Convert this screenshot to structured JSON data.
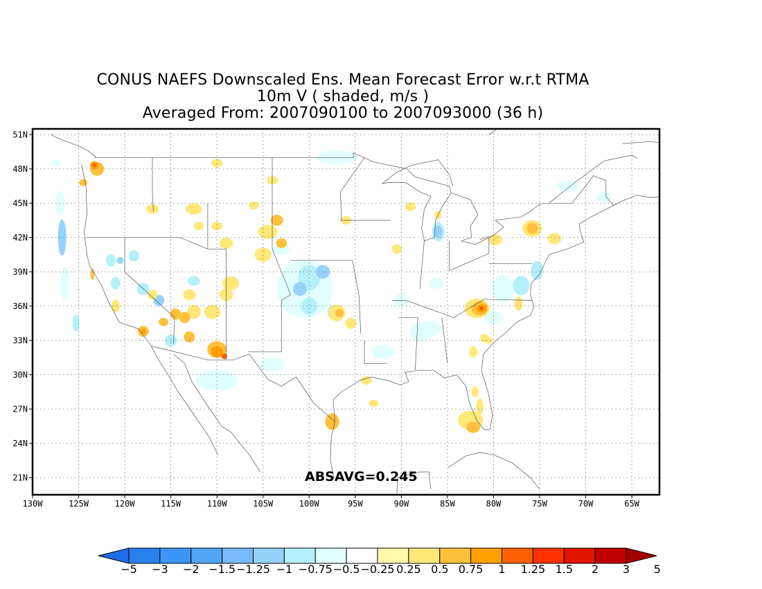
{
  "title": {
    "line1": "CONUS NAEFS Downscaled Ens. Mean Forecast Error w.r.t RTMA",
    "line2": "10m V ( shaded, m/s )",
    "line3": "Averaged From: 2007090100 to 2007093000 (36 h)"
  },
  "annotation": "ABSAVG=0.245",
  "map": {
    "lon_range": [
      -130,
      -62
    ],
    "lat_range": [
      19.5,
      51.5
    ],
    "lon_ticks": [
      "130W",
      "125W",
      "120W",
      "115W",
      "110W",
      "105W",
      "100W",
      "95W",
      "90W",
      "85W",
      "80W",
      "75W",
      "70W",
      "65W"
    ],
    "lat_ticks": [
      "21N",
      "24N",
      "27N",
      "30N",
      "33N",
      "36N",
      "39N",
      "42N",
      "45N",
      "48N",
      "51N"
    ],
    "grid": "dotted"
  },
  "colorbar": {
    "labels": [
      "-5",
      "-3",
      "-2",
      "-1.5",
      "-1.25",
      "-1",
      "-0.75",
      "-0.5",
      "-0.25",
      "0.25",
      "0.5",
      "0.75",
      "1",
      "1.25",
      "1.5",
      "2",
      "3",
      "5"
    ],
    "colors": [
      "#1e6ee6",
      "#2882ee",
      "#3c96f5",
      "#50a5f5",
      "#78b9fa",
      "#96d2fa",
      "#b4f0fa",
      "#e1ffff",
      "#ffffff",
      "#fffaaa",
      "#ffe878",
      "#ffc03c",
      "#ffa000",
      "#ff6000",
      "#ff3200",
      "#e11400",
      "#c00000",
      "#a50000"
    ]
  }
}
